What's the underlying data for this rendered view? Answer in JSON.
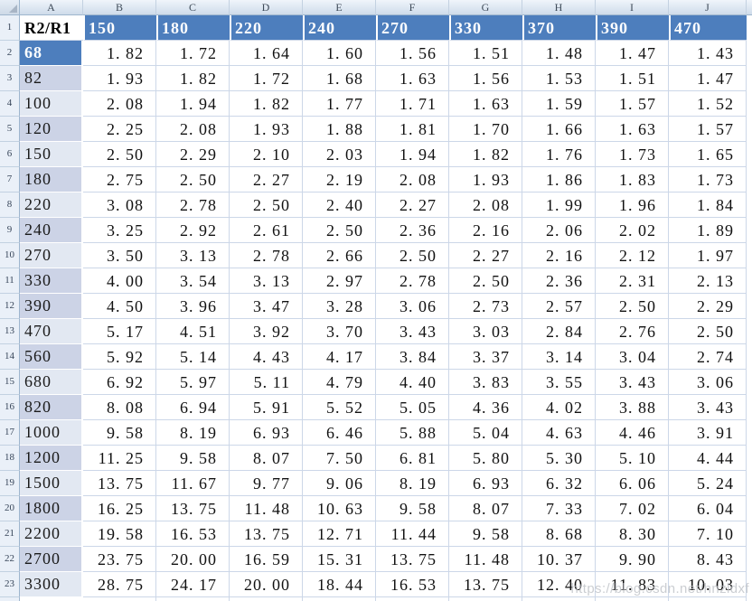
{
  "sheet": {
    "corner_icon": "select-all-triangle",
    "column_letters": [
      "A",
      "B",
      "C",
      "D",
      "E",
      "F",
      "G",
      "H",
      "I",
      "J"
    ],
    "header_row": {
      "row_number": "1",
      "corner_label": "R2/R1",
      "col_headers": [
        "150",
        "180",
        "220",
        "240",
        "270",
        "330",
        "370",
        "390",
        "470"
      ]
    },
    "rows": [
      {
        "row_number": "2",
        "label": "68",
        "band": "dark",
        "values": [
          "1. 82",
          "1. 72",
          "1. 64",
          "1. 60",
          "1. 56",
          "1. 51",
          "1. 48",
          "1. 47",
          "1. 43"
        ]
      },
      {
        "row_number": "3",
        "label": "82",
        "band": "medium",
        "values": [
          "1. 93",
          "1. 82",
          "1. 72",
          "1. 68",
          "1. 63",
          "1. 56",
          "1. 53",
          "1. 51",
          "1. 47"
        ]
      },
      {
        "row_number": "4",
        "label": "100",
        "band": "light",
        "values": [
          "2. 08",
          "1. 94",
          "1. 82",
          "1. 77",
          "1. 71",
          "1. 63",
          "1. 59",
          "1. 57",
          "1. 52"
        ]
      },
      {
        "row_number": "5",
        "label": "120",
        "band": "medium",
        "values": [
          "2. 25",
          "2. 08",
          "1. 93",
          "1. 88",
          "1. 81",
          "1. 70",
          "1. 66",
          "1. 63",
          "1. 57"
        ]
      },
      {
        "row_number": "6",
        "label": "150",
        "band": "light",
        "values": [
          "2. 50",
          "2. 29",
          "2. 10",
          "2. 03",
          "1. 94",
          "1. 82",
          "1. 76",
          "1. 73",
          "1. 65"
        ]
      },
      {
        "row_number": "7",
        "label": "180",
        "band": "medium",
        "values": [
          "2. 75",
          "2. 50",
          "2. 27",
          "2. 19",
          "2. 08",
          "1. 93",
          "1. 86",
          "1. 83",
          "1. 73"
        ]
      },
      {
        "row_number": "8",
        "label": "220",
        "band": "light",
        "values": [
          "3. 08",
          "2. 78",
          "2. 50",
          "2. 40",
          "2. 27",
          "2. 08",
          "1. 99",
          "1. 96",
          "1. 84"
        ]
      },
      {
        "row_number": "9",
        "label": "240",
        "band": "medium",
        "values": [
          "3. 25",
          "2. 92",
          "2. 61",
          "2. 50",
          "2. 36",
          "2. 16",
          "2. 06",
          "2. 02",
          "1. 89"
        ]
      },
      {
        "row_number": "10",
        "label": "270",
        "band": "light",
        "values": [
          "3. 50",
          "3. 13",
          "2. 78",
          "2. 66",
          "2. 50",
          "2. 27",
          "2. 16",
          "2. 12",
          "1. 97"
        ]
      },
      {
        "row_number": "11",
        "label": "330",
        "band": "medium",
        "values": [
          "4. 00",
          "3. 54",
          "3. 13",
          "2. 97",
          "2. 78",
          "2. 50",
          "2. 36",
          "2. 31",
          "2. 13"
        ]
      },
      {
        "row_number": "12",
        "label": "390",
        "band": "medium",
        "values": [
          "4. 50",
          "3. 96",
          "3. 47",
          "3. 28",
          "3. 06",
          "2. 73",
          "2. 57",
          "2. 50",
          "2. 29"
        ]
      },
      {
        "row_number": "13",
        "label": "470",
        "band": "light",
        "values": [
          "5. 17",
          "4. 51",
          "3. 92",
          "3. 70",
          "3. 43",
          "3. 03",
          "2. 84",
          "2. 76",
          "2. 50"
        ]
      },
      {
        "row_number": "14",
        "label": "560",
        "band": "medium",
        "values": [
          "5. 92",
          "5. 14",
          "4. 43",
          "4. 17",
          "3. 84",
          "3. 37",
          "3. 14",
          "3. 04",
          "2. 74"
        ]
      },
      {
        "row_number": "15",
        "label": "680",
        "band": "light",
        "values": [
          "6. 92",
          "5. 97",
          "5. 11",
          "4. 79",
          "4. 40",
          "3. 83",
          "3. 55",
          "3. 43",
          "3. 06"
        ]
      },
      {
        "row_number": "16",
        "label": "820",
        "band": "medium",
        "values": [
          "8. 08",
          "6. 94",
          "5. 91",
          "5. 52",
          "5. 05",
          "4. 36",
          "4. 02",
          "3. 88",
          "3. 43"
        ]
      },
      {
        "row_number": "17",
        "label": "1000",
        "band": "light",
        "values": [
          "9. 58",
          "8. 19",
          "6. 93",
          "6. 46",
          "5. 88",
          "5. 04",
          "4. 63",
          "4. 46",
          "3. 91"
        ]
      },
      {
        "row_number": "18",
        "label": "1200",
        "band": "medium",
        "values": [
          "11. 25",
          "9. 58",
          "8. 07",
          "7. 50",
          "6. 81",
          "5. 80",
          "5. 30",
          "5. 10",
          "4. 44"
        ]
      },
      {
        "row_number": "19",
        "label": "1500",
        "band": "light",
        "values": [
          "13. 75",
          "11. 67",
          "9. 77",
          "9. 06",
          "8. 19",
          "6. 93",
          "6. 32",
          "6. 06",
          "5. 24"
        ]
      },
      {
        "row_number": "20",
        "label": "1800",
        "band": "medium",
        "values": [
          "16. 25",
          "13. 75",
          "11. 48",
          "10. 63",
          "9. 58",
          "8. 07",
          "7. 33",
          "7. 02",
          "6. 04"
        ]
      },
      {
        "row_number": "21",
        "label": "2200",
        "band": "light",
        "values": [
          "19. 58",
          "16. 53",
          "13. 75",
          "12. 71",
          "11. 44",
          "9. 58",
          "8. 68",
          "8. 30",
          "7. 10"
        ]
      },
      {
        "row_number": "22",
        "label": "2700",
        "band": "medium",
        "values": [
          "23. 75",
          "20. 00",
          "16. 59",
          "15. 31",
          "13. 75",
          "11. 48",
          "10. 37",
          "9. 90",
          "8. 43"
        ]
      },
      {
        "row_number": "23",
        "label": "3300",
        "band": "light",
        "values": [
          "28. 75",
          "24. 17",
          "20. 00",
          "18. 44",
          "16. 53",
          "13. 75",
          "12. 40",
          "11. 83",
          "10. 03"
        ]
      }
    ]
  },
  "watermark": {
    "text": "https://blog.csdn.net/hnzldxf"
  },
  "colors": {
    "header_blue": "#4d7ebd",
    "band_medium": "#ccd3e6",
    "band_light": "#e2e8f2",
    "gridline": "#ccd7e8",
    "gutter_bg": "#eaf0f8"
  }
}
